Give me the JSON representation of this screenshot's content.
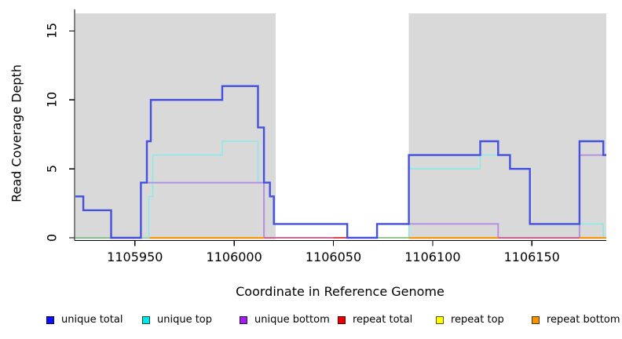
{
  "chart_data": {
    "type": "line",
    "subtype": "step-coverage",
    "title": "",
    "xlabel": "Coordinate in Reference Genome",
    "ylabel": "Read Coverage Depth",
    "xlim": [
      1105920,
      1106187.5
    ],
    "ylim": [
      0,
      16.3
    ],
    "x_ticks": [
      1105950,
      1106000,
      1106050,
      1106100,
      1106150
    ],
    "y_ticks": [
      0,
      5,
      10,
      15
    ],
    "grid": false,
    "legend_position": "bottom",
    "background_color": "#ffffff",
    "shaded_region_color": "#d9d9d9",
    "shaded_regions": [
      {
        "x0": 1105920,
        "x1": 1106021
      },
      {
        "x0": 1106088,
        "x1": 1106187.5
      }
    ],
    "series": [
      {
        "name": "unique total",
        "legend_color": "#1010e8",
        "line_color": "#4450e0",
        "line_width": 2.4,
        "steps": [
          [
            1105920,
            3
          ],
          [
            1105924,
            2
          ],
          [
            1105938,
            0
          ],
          [
            1105953,
            4
          ],
          [
            1105956,
            7
          ],
          [
            1105958,
            10
          ],
          [
            1105994,
            11
          ],
          [
            1106012,
            8
          ],
          [
            1106015,
            4
          ],
          [
            1106018,
            3
          ],
          [
            1106020,
            1
          ],
          [
            1106057,
            0
          ],
          [
            1106072,
            1
          ],
          [
            1106088,
            6
          ],
          [
            1106124,
            7
          ],
          [
            1106133,
            6
          ],
          [
            1106139,
            5
          ],
          [
            1106149,
            1
          ],
          [
            1106174,
            7
          ],
          [
            1106186,
            6
          ]
        ]
      },
      {
        "name": "unique top",
        "legend_color": "#00e5e5",
        "line_color": "#8ce9ea",
        "line_width": 1.6,
        "steps": [
          [
            1105920,
            0
          ],
          [
            1105957,
            3
          ],
          [
            1105959,
            6
          ],
          [
            1105994,
            7
          ],
          [
            1106012,
            4
          ],
          [
            1106015,
            0
          ],
          [
            1106088,
            5
          ],
          [
            1106124,
            6
          ],
          [
            1106139,
            5
          ],
          [
            1106149,
            1
          ],
          [
            1106186,
            0
          ]
        ]
      },
      {
        "name": "unique bottom",
        "legend_color": "#9c20e8",
        "line_color": "#b591e2",
        "line_width": 2.0,
        "steps": [
          [
            1105920,
            0
          ],
          [
            1105953,
            4
          ],
          [
            1106015,
            0
          ],
          [
            1106072,
            1
          ],
          [
            1106133,
            0
          ],
          [
            1106174,
            6
          ]
        ]
      },
      {
        "name": "repeat total",
        "legend_color": "#e80000",
        "line_color": "#e04545",
        "line_width": 1.4,
        "steps": [
          [
            1105920,
            0
          ]
        ]
      },
      {
        "name": "repeat top",
        "legend_color": "#ffff00",
        "line_color": "#e8e84a",
        "line_width": 1.4,
        "steps": [
          [
            1105920,
            0
          ]
        ]
      },
      {
        "name": "repeat bottom",
        "legend_color": "#f59300",
        "line_color": "#ff9800",
        "line_width": 1.8,
        "steps": [
          [
            1105920,
            0
          ]
        ]
      }
    ],
    "baseline_segments": [
      {
        "x0": 1105920,
        "x1": 1105938,
        "color": "#8cc98c"
      },
      {
        "x0": 1105958,
        "x1": 1106015,
        "color": "#ff9800"
      },
      {
        "x0": 1106015,
        "x1": 1106050,
        "color": "#d2608c"
      },
      {
        "x0": 1106050,
        "x1": 1106057,
        "color": "#e83a3a"
      },
      {
        "x0": 1106057,
        "x1": 1106088,
        "color": "#8cc98c"
      },
      {
        "x0": 1106088,
        "x1": 1106133,
        "color": "#ff9800"
      },
      {
        "x0": 1106133,
        "x1": 1106174,
        "color": "#d2608c"
      },
      {
        "x0": 1106174,
        "x1": 1106187.5,
        "color": "#ff9800"
      }
    ]
  }
}
